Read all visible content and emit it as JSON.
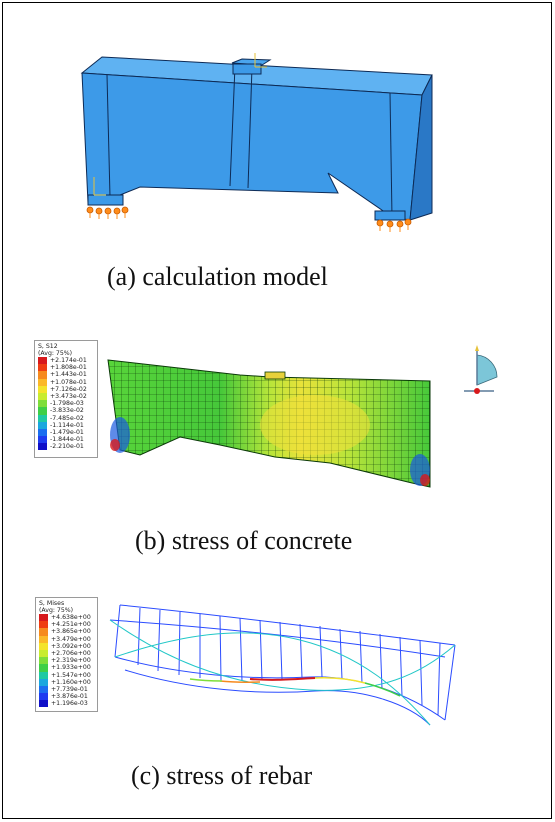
{
  "figure": {
    "captions": {
      "a": "(a) calculation model",
      "b": "(b) stress of concrete",
      "c": "(c) stress of rebar"
    }
  },
  "legend_concrete": {
    "title": "S, S12",
    "subtitle": "(Avg: 75%)",
    "values": [
      "+2.174e-01",
      "+1.808e-01",
      "+1.443e-01",
      "+1.078e-01",
      "+7.126e-02",
      "+3.473e-02",
      "-1.798e-03",
      "-3.833e-02",
      "-7.485e-02",
      "-1.114e-01",
      "-1.479e-01",
      "-1.844e-01",
      "-2.210e-01"
    ],
    "colors": [
      "#d7191c",
      "#ef3d12",
      "#f68a1e",
      "#fbb829",
      "#f4e32c",
      "#c8ec2f",
      "#7ede3a",
      "#3ecf47",
      "#1fc9a3",
      "#1aa7de",
      "#1b6ef0",
      "#1e3cf0",
      "#1010c8"
    ]
  },
  "legend_rebar": {
    "title": "S, Mises",
    "subtitle": "(Avg: 75%)",
    "values": [
      "+4.638e+00",
      "+4.251e+00",
      "+3.865e+00",
      "+3.479e+00",
      "+3.092e+00",
      "+2.706e+00",
      "+2.319e+00",
      "+1.933e+00",
      "+1.547e+00",
      "+1.160e+00",
      "+7.739e-01",
      "+3.876e-01",
      "+1.196e-03"
    ],
    "colors": [
      "#d7191c",
      "#ef3d12",
      "#f68a1e",
      "#fbb829",
      "#f4e32c",
      "#c8ec2f",
      "#7ede3a",
      "#3ecf47",
      "#1fc9a3",
      "#1aa7de",
      "#1b6ef0",
      "#1e3cf0",
      "#1010c8"
    ]
  },
  "colors": {
    "model_blue": "#3d9ae8",
    "model_edge": "#0d2a55",
    "support": "#ff8c1a",
    "mesh_green": "#46c83a"
  }
}
